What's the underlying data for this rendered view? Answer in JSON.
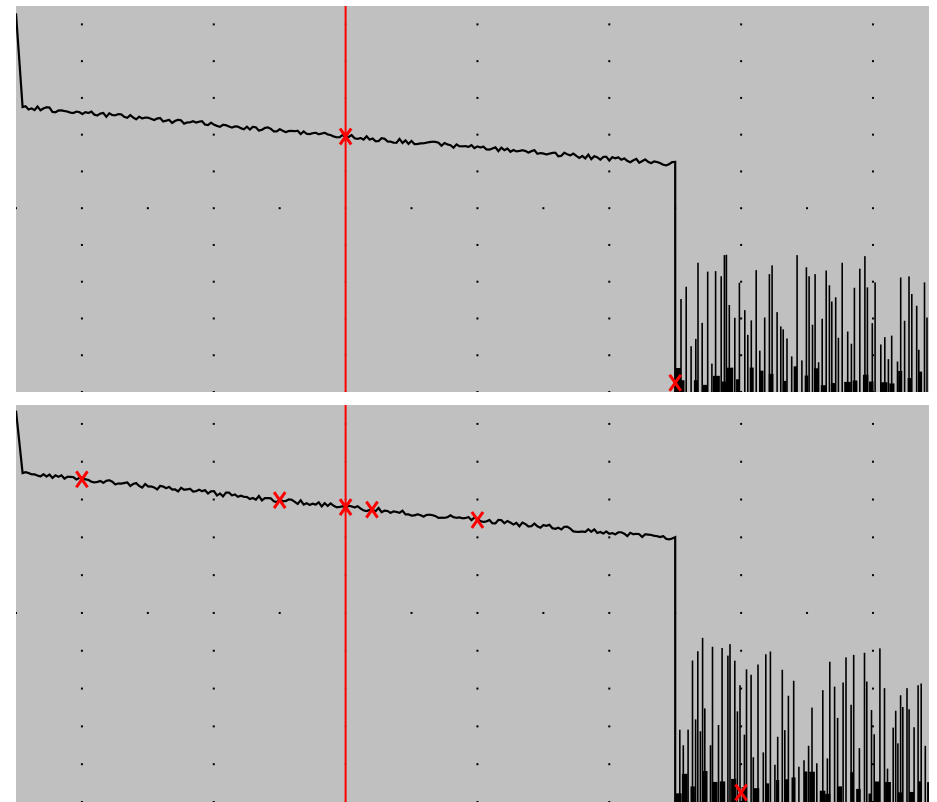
{
  "colors": {
    "background": "#c0c0c0",
    "trace": "#000000",
    "cursor": "#ff0000",
    "event_marker": "#ff0000",
    "grid_dot": "#000000",
    "separator": "#ffffff"
  },
  "chart_data": [
    {
      "type": "line",
      "panel": "top",
      "grid": "dotted",
      "trace": {
        "start": {
          "x": 0.0,
          "y": 10.3
        },
        "launch_start": 0.0,
        "launch_end": 0.1,
        "linear": [
          [
            0.1,
            7.75
          ],
          [
            5.0,
            6.95
          ],
          [
            10.0,
            6.2
          ]
        ],
        "end_x": 10.0,
        "noise_floor": 0.0,
        "noise_peak_max": 3.8,
        "x_max": 13.85
      },
      "cursor_x": 5.0,
      "markers_x": [
        5.0,
        10.0
      ],
      "xlim": [
        0,
        13.85
      ],
      "ylim": [
        0,
        10.5
      ]
    },
    {
      "type": "line",
      "panel": "bottom",
      "grid": "dotted",
      "trace": {
        "start": {
          "x": 0.0,
          "y": 10.35
        },
        "launch_start": 0.0,
        "launch_end": 0.1,
        "linear": [
          [
            0.1,
            8.7
          ],
          [
            5.0,
            7.8
          ],
          [
            10.0,
            6.95
          ]
        ],
        "end_x": 10.0,
        "noise_floor": 0.0,
        "noise_peak_max": 4.4,
        "x_max": 13.85
      },
      "cursor_x": 5.0,
      "markers_x": [
        1.0,
        4.0,
        5.0,
        5.4,
        7.0,
        11.0
      ],
      "xlim": [
        0,
        13.85
      ],
      "ylim": [
        0,
        10.5
      ]
    }
  ]
}
